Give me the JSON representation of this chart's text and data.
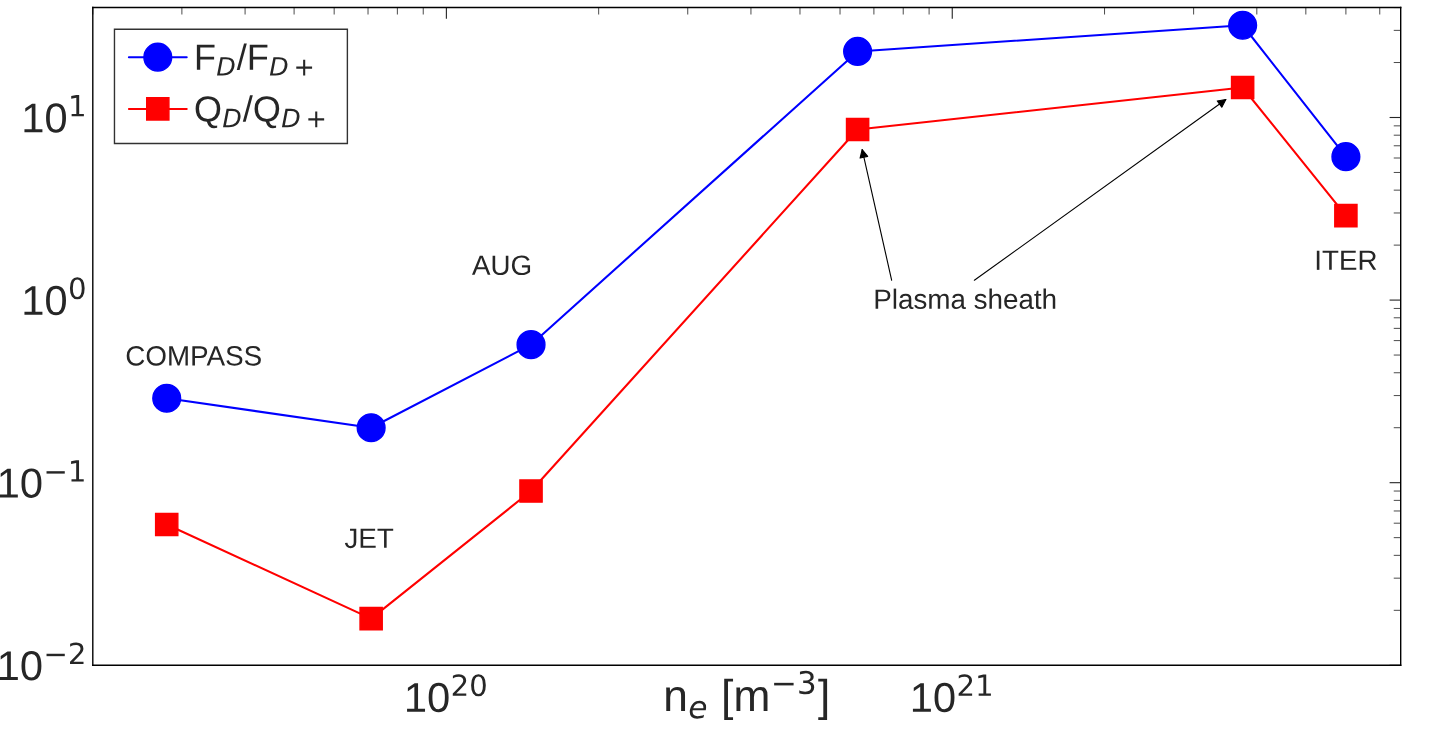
{
  "chart_data": {
    "type": "line",
    "xlabel": "n$_{e}$ [m$^{−3}$]",
    "x": [
      2.8e+19,
      7.1e+19,
      1.47e+20,
      6.5e+20,
      3.75e+21,
      6e+21
    ],
    "series": [
      {
        "name": "F$_{D}$/F$_{D+}$",
        "color": "#0000ff",
        "marker": "circle",
        "values": [
          0.29,
          0.2,
          0.57,
          23,
          32,
          6.1
        ]
      },
      {
        "name": "Q$_{D}$/Q$_{D+}$",
        "color": "#ff0000",
        "marker": "square",
        "values": [
          0.059,
          0.018,
          0.09,
          8.6,
          14.6,
          2.9
        ]
      }
    ],
    "log": "xy",
    "xlim": [
      2e+19,
      7.7e+21
    ],
    "xticks": [
      {
        "value": 1e+20,
        "label": "10$^{20}$"
      },
      {
        "value": 1e+21,
        "label": "10$^{21}$"
      }
    ],
    "ylim": [
      0.01,
      40
    ],
    "yticks": [
      {
        "value": 0.01,
        "label": "10$^{−2}$"
      },
      {
        "value": 0.1,
        "label": "10$^{−1}$"
      },
      {
        "value": 1,
        "label": "10$^{0}$"
      },
      {
        "value": 10,
        "label": "10$^{1}$"
      }
    ],
    "grid": false,
    "legend": "top left",
    "annotations": [
      {
        "text": "COMPASS",
        "x": 2.8e+19,
        "y": 0.29
      },
      {
        "text": "JET",
        "x": 7.1e+19,
        "y": 0.018
      },
      {
        "text": "AUG",
        "x": 1.47e+20,
        "y": 0.57
      },
      "Plasma sheath",
      {
        "text": "ITER",
        "x": 6e+21,
        "y": 2.9
      }
    ]
  }
}
